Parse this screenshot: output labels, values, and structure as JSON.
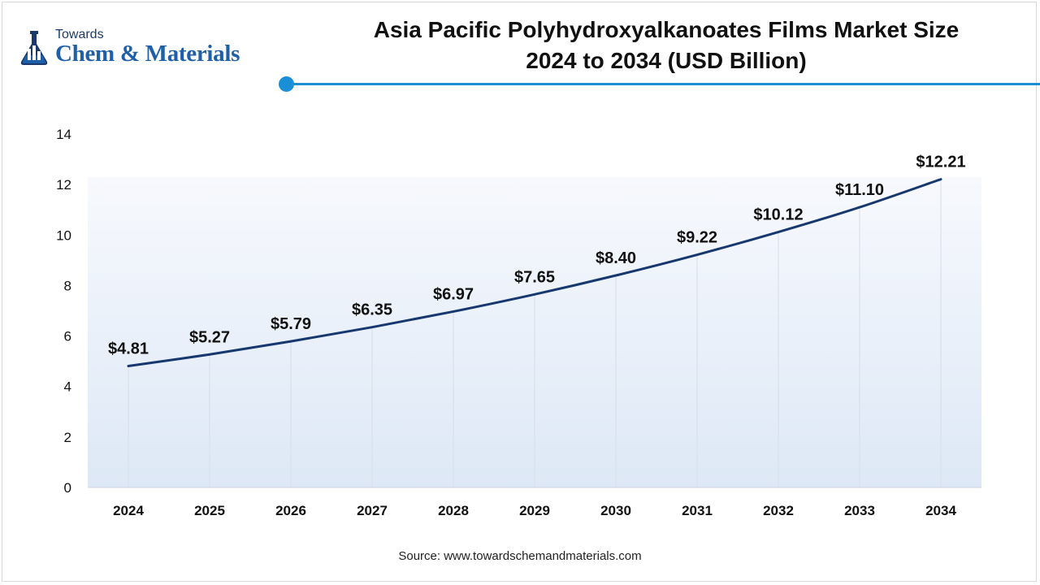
{
  "brand": {
    "top": "Towards",
    "main": "Chem & Materials"
  },
  "title_lines": [
    "Asia Pacific Polyhydroxyalkanoates Films Market Size",
    "2024 to 2034 (USD Billion)"
  ],
  "source": "Source: www.towardschemandmaterials.com",
  "colors": {
    "line": "#17386f",
    "accent": "#1a8fd6",
    "area_top": "#f7f9fd",
    "area_bottom": "#dde8f6"
  },
  "chart_data": {
    "type": "line",
    "title": "Asia Pacific Polyhydroxyalkanoates Films Market Size 2024 to 2034 (USD Billion)",
    "categories": [
      "2024",
      "2025",
      "2026",
      "2027",
      "2028",
      "2029",
      "2030",
      "2031",
      "2032",
      "2033",
      "2034"
    ],
    "values": [
      4.81,
      5.27,
      5.79,
      6.35,
      6.97,
      7.65,
      8.4,
      9.22,
      10.12,
      11.1,
      12.21
    ],
    "data_labels": [
      "$4.81",
      "$5.27",
      "$5.79",
      "$6.35",
      "$6.97",
      "$7.65",
      "$8.40",
      "$9.22",
      "$10.12",
      "$11.10",
      "$12.21"
    ],
    "yticks": [
      "0",
      "2",
      "4",
      "6",
      "8",
      "10",
      "12",
      "14"
    ],
    "ylim": [
      0,
      14
    ],
    "xlabel": "",
    "ylabel": "",
    "grid": "vertical",
    "legend": "none"
  }
}
